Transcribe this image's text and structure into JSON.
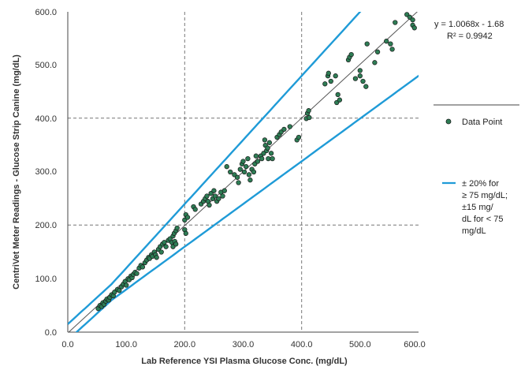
{
  "chart_data": {
    "type": "scatter",
    "xlabel": "Lab Reference YSI Plasma Glucose Conc. (mg/dL)",
    "ylabel": "CentriVet Meter Readings - Glucose Strip Canine (mg/dL)",
    "xlim": [
      0,
      600
    ],
    "ylim": [
      0,
      600
    ],
    "x_ticks": [
      "0.0",
      "100.0",
      "200.0",
      "300.0",
      "400.0",
      "500.0",
      "600.0"
    ],
    "y_ticks": [
      "0.0",
      "100.0",
      "200.0",
      "300.0",
      "400.0",
      "500.0",
      "600.0"
    ],
    "grid": "dashed at x=200, 400 and y=200, 400",
    "legend_position": "right",
    "equation": "y = 1.0068x - 1.68",
    "r_squared": "R² = 0.9942",
    "colors": {
      "points": "#2e7d55",
      "points_edge": "#1a1a1a",
      "bounds": "#1f9bd7",
      "trend": "#555555"
    },
    "trendline": {
      "slope": 1.0068,
      "intercept": -1.68
    },
    "bounds": [
      {
        "threshold": 75,
        "fraction": 0.2,
        "abs": 15,
        "side": "upper"
      },
      {
        "threshold": 75,
        "fraction": 0.2,
        "abs": 15,
        "side": "lower"
      }
    ],
    "series": [
      {
        "name": "Data Point",
        "type": "scatter",
        "points": [
          [
            52,
            44
          ],
          [
            55,
            50
          ],
          [
            58,
            48
          ],
          [
            60,
            55
          ],
          [
            62,
            52
          ],
          [
            65,
            58
          ],
          [
            67,
            62
          ],
          [
            70,
            60
          ],
          [
            72,
            65
          ],
          [
            75,
            70
          ],
          [
            78,
            68
          ],
          [
            80,
            75
          ],
          [
            85,
            80
          ],
          [
            88,
            78
          ],
          [
            92,
            85
          ],
          [
            95,
            90
          ],
          [
            98,
            95
          ],
          [
            100,
            88
          ],
          [
            103,
            100
          ],
          [
            105,
            98
          ],
          [
            108,
            105
          ],
          [
            110,
            102
          ],
          [
            112,
            108
          ],
          [
            115,
            112
          ],
          [
            118,
            110
          ],
          [
            122,
            120
          ],
          [
            125,
            125
          ],
          [
            128,
            122
          ],
          [
            132,
            130
          ],
          [
            135,
            135
          ],
          [
            138,
            140
          ],
          [
            140,
            138
          ],
          [
            143,
            145
          ],
          [
            145,
            142
          ],
          [
            148,
            150
          ],
          [
            150,
            145
          ],
          [
            152,
            140
          ],
          [
            155,
            155
          ],
          [
            158,
            160
          ],
          [
            160,
            150
          ],
          [
            162,
            165
          ],
          [
            165,
            168
          ],
          [
            168,
            160
          ],
          [
            172,
            172
          ],
          [
            175,
            175
          ],
          [
            178,
            168
          ],
          [
            180,
            180
          ],
          [
            182,
            185
          ],
          [
            185,
            190
          ],
          [
            187,
            195
          ],
          [
            180,
            160
          ],
          [
            183,
            170
          ],
          [
            185,
            165
          ],
          [
            200,
            192
          ],
          [
            202,
            185
          ],
          [
            200,
            210
          ],
          [
            202,
            220
          ],
          [
            205,
            215
          ],
          [
            215,
            235
          ],
          [
            218,
            230
          ],
          [
            228,
            240
          ],
          [
            232,
            245
          ],
          [
            235,
            250
          ],
          [
            238,
            255
          ],
          [
            240,
            245
          ],
          [
            242,
            238
          ],
          [
            245,
            260
          ],
          [
            248,
            250
          ],
          [
            250,
            265
          ],
          [
            252,
            255
          ],
          [
            255,
            245
          ],
          [
            258,
            250
          ],
          [
            262,
            262
          ],
          [
            265,
            255
          ],
          [
            268,
            265
          ],
          [
            272,
            310
          ],
          [
            278,
            300
          ],
          [
            285,
            295
          ],
          [
            290,
            290
          ],
          [
            292,
            280
          ],
          [
            295,
            305
          ],
          [
            298,
            315
          ],
          [
            300,
            320
          ],
          [
            302,
            300
          ],
          [
            305,
            310
          ],
          [
            308,
            325
          ],
          [
            310,
            295
          ],
          [
            312,
            285
          ],
          [
            315,
            305
          ],
          [
            318,
            300
          ],
          [
            320,
            315
          ],
          [
            322,
            330
          ],
          [
            325,
            320
          ],
          [
            330,
            330
          ],
          [
            332,
            325
          ],
          [
            335,
            335
          ],
          [
            337,
            360
          ],
          [
            338,
            350
          ],
          [
            340,
            340
          ],
          [
            342,
            345
          ],
          [
            343,
            325
          ],
          [
            345,
            355
          ],
          [
            348,
            335
          ],
          [
            350,
            325
          ],
          [
            358,
            365
          ],
          [
            362,
            370
          ],
          [
            365,
            375
          ],
          [
            370,
            380
          ],
          [
            380,
            385
          ],
          [
            392,
            360
          ],
          [
            395,
            365
          ],
          [
            408,
            400
          ],
          [
            410,
            410
          ],
          [
            412,
            415
          ],
          [
            413,
            402
          ],
          [
            440,
            465
          ],
          [
            445,
            480
          ],
          [
            446,
            485
          ],
          [
            450,
            470
          ],
          [
            458,
            480
          ],
          [
            460,
            430
          ],
          [
            462,
            445
          ],
          [
            465,
            435
          ],
          [
            480,
            510
          ],
          [
            482,
            515
          ],
          [
            485,
            520
          ],
          [
            492,
            475
          ],
          [
            500,
            480
          ],
          [
            500,
            490
          ],
          [
            505,
            470
          ],
          [
            510,
            460
          ],
          [
            512,
            540
          ],
          [
            525,
            505
          ],
          [
            530,
            525
          ],
          [
            545,
            545
          ],
          [
            552,
            540
          ],
          [
            555,
            530
          ],
          [
            560,
            580
          ],
          [
            580,
            595
          ],
          [
            585,
            590
          ],
          [
            590,
            575
          ],
          [
            590,
            585
          ],
          [
            593,
            570
          ]
        ]
      },
      {
        "name": "± 20% for ≥ 75 mg/dL; ±15 mg/ dL for < 75 mg/dL",
        "type": "line"
      }
    ]
  },
  "legend": {
    "items": [
      {
        "label": "Data Point"
      },
      {
        "label_lines": [
          "± 20% for",
          "≥ 75 mg/dL;",
          "±15 mg/",
          "dL for < 75",
          "mg/dL"
        ]
      }
    ]
  }
}
